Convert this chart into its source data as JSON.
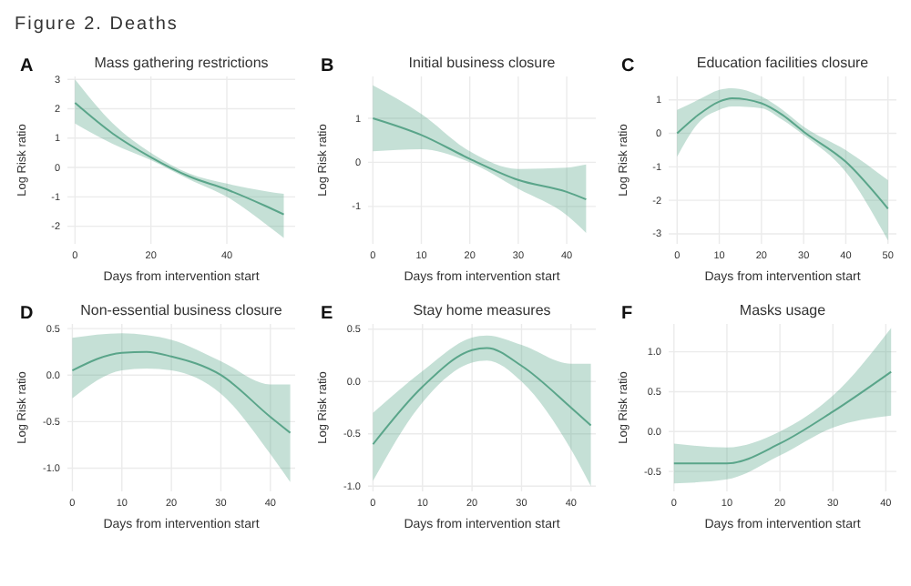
{
  "chart_data": [
    {
      "type": "line",
      "title": "Mass gathering restrictions",
      "xlabel": "Days from intervention start",
      "ylabel": "Log Risk ratio",
      "annotations": [
        "Figure 2. Deaths",
        "A"
      ],
      "grid": true,
      "xlim": [
        -2,
        58
      ],
      "xticks": [
        0,
        20,
        40
      ],
      "ylim": [
        -2.6,
        3.1
      ],
      "yticks": [
        -2,
        -1,
        0,
        1,
        2,
        3
      ],
      "series": [
        {
          "color": "#5aa58a",
          "x": [
            0,
            10,
            20,
            30,
            40,
            50,
            55
          ],
          "values": [
            2.2,
            1.15,
            0.35,
            -0.3,
            -0.75,
            -1.3,
            -1.6
          ],
          "lower": [
            1.5,
            0.8,
            0.25,
            -0.4,
            -1.0,
            -1.9,
            -2.4
          ],
          "upper": [
            3.0,
            1.5,
            0.5,
            -0.2,
            -0.55,
            -0.8,
            -0.9
          ]
        }
      ]
    },
    {
      "type": "line",
      "title": "Initial business closure",
      "xlabel": "Days from intervention start",
      "ylabel": "Log Risk ratio",
      "annotations": [
        "B"
      ],
      "grid": true,
      "xlim": [
        -1,
        46
      ],
      "xticks": [
        0,
        10,
        20,
        30,
        40
      ],
      "ylim": [
        -1.85,
        1.95
      ],
      "yticks": [
        -1,
        0,
        1
      ],
      "series": [
        {
          "color": "#5aa58a",
          "x": [
            0,
            10,
            20,
            30,
            40,
            44
          ],
          "values": [
            1.0,
            0.62,
            0.08,
            -0.4,
            -0.67,
            -0.84
          ],
          "lower": [
            0.25,
            0.3,
            0.0,
            -0.6,
            -1.2,
            -1.6
          ],
          "upper": [
            1.75,
            1.1,
            0.25,
            -0.15,
            -0.12,
            -0.05
          ]
        }
      ]
    },
    {
      "type": "line",
      "title": "Education facilities closure",
      "xlabel": "Days from intervention start",
      "ylabel": "Log Risk ratio",
      "annotations": [
        "C"
      ],
      "grid": true,
      "xlim": [
        -2,
        52
      ],
      "xticks": [
        0,
        10,
        20,
        30,
        40,
        50
      ],
      "ylim": [
        -3.3,
        1.7
      ],
      "yticks": [
        -3,
        -2,
        -1,
        0,
        1
      ],
      "series": [
        {
          "color": "#5aa58a",
          "x": [
            0,
            5,
            10,
            13,
            20,
            25,
            30,
            40,
            50
          ],
          "values": [
            0.0,
            0.55,
            0.95,
            1.05,
            0.9,
            0.55,
            0.05,
            -0.85,
            -2.25
          ],
          "lower": [
            -0.7,
            0.3,
            0.7,
            0.8,
            0.75,
            0.4,
            -0.05,
            -1.15,
            -3.2
          ],
          "upper": [
            0.7,
            1.0,
            1.3,
            1.35,
            1.1,
            0.7,
            0.2,
            -0.5,
            -1.4
          ]
        }
      ]
    },
    {
      "type": "line",
      "title": "Non-essential business closure",
      "xlabel": "Days from intervention start",
      "ylabel": "Log Risk ratio",
      "annotations": [
        "D"
      ],
      "grid": true,
      "xlim": [
        -1,
        45
      ],
      "xticks": [
        0,
        10,
        20,
        30,
        40
      ],
      "ylim": [
        -1.25,
        0.55
      ],
      "yticks": [
        {
          "value": -1,
          "label": "-1.0"
        },
        {
          "value": -0.5,
          "label": "-0.5"
        },
        {
          "value": 0,
          "label": "0.0"
        },
        {
          "value": 0.5,
          "label": "0.5"
        }
      ],
      "series": [
        {
          "color": "#5aa58a",
          "x": [
            0,
            10,
            15,
            20,
            30,
            40,
            44
          ],
          "values": [
            0.05,
            0.24,
            0.25,
            0.2,
            0.0,
            -0.45,
            -0.62
          ],
          "lower": [
            -0.25,
            0.05,
            0.07,
            0.05,
            -0.2,
            -0.85,
            -1.15
          ],
          "upper": [
            0.4,
            0.45,
            0.43,
            0.38,
            0.15,
            -0.1,
            -0.1
          ]
        }
      ]
    },
    {
      "type": "line",
      "title": "Stay home measures",
      "xlabel": "Days from intervention start",
      "ylabel": "Log Risk ratio",
      "annotations": [
        "E"
      ],
      "grid": true,
      "xlim": [
        -1,
        45
      ],
      "xticks": [
        0,
        10,
        20,
        30,
        40
      ],
      "ylim": [
        -1.05,
        0.55
      ],
      "yticks": [
        {
          "value": -1,
          "label": "-1.0"
        },
        {
          "value": -0.5,
          "label": "-0.5"
        },
        {
          "value": 0,
          "label": "0.0"
        },
        {
          "value": 0.5,
          "label": "0.5"
        }
      ],
      "series": [
        {
          "color": "#5aa58a",
          "x": [
            0,
            10,
            20,
            23,
            30,
            40,
            44
          ],
          "values": [
            -0.6,
            -0.05,
            0.3,
            0.32,
            0.15,
            -0.25,
            -0.42
          ],
          "lower": [
            -0.95,
            -0.2,
            0.18,
            0.2,
            0.0,
            -0.65,
            -1.0
          ],
          "upper": [
            -0.3,
            0.1,
            0.42,
            0.44,
            0.35,
            0.17,
            0.17
          ]
        }
      ]
    },
    {
      "type": "line",
      "title": "Masks usage",
      "xlabel": "Days from intervention start",
      "ylabel": "Log Risk ratio",
      "annotations": [
        "F"
      ],
      "grid": true,
      "xlim": [
        -1,
        42
      ],
      "xticks": [
        0,
        10,
        20,
        30,
        40
      ],
      "ylim": [
        -0.75,
        1.35
      ],
      "yticks": [
        {
          "value": -0.5,
          "label": "-0.5"
        },
        {
          "value": 0,
          "label": "0.0"
        },
        {
          "value": 0.5,
          "label": "0.5"
        },
        {
          "value": 1,
          "label": "1.0"
        }
      ],
      "series": [
        {
          "color": "#5aa58a",
          "x": [
            0,
            10,
            20,
            30,
            41
          ],
          "values": [
            -0.4,
            -0.4,
            -0.15,
            0.25,
            0.75
          ],
          "lower": [
            -0.65,
            -0.6,
            -0.3,
            0.05,
            0.2
          ],
          "upper": [
            -0.15,
            -0.2,
            0.0,
            0.45,
            1.3
          ]
        }
      ]
    }
  ]
}
